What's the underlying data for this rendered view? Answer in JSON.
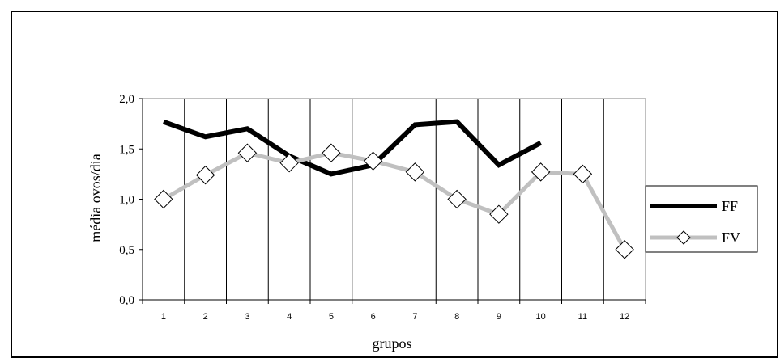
{
  "chart_data": {
    "type": "line",
    "title": "",
    "xlabel": "grupos",
    "ylabel": "média ovos/dia",
    "categories": [
      "1",
      "2",
      "3",
      "4",
      "5",
      "6",
      "7",
      "8",
      "9",
      "10",
      "11",
      "12"
    ],
    "ylim": [
      0,
      2.0
    ],
    "yticks": [
      "0,0",
      "0,5",
      "1,0",
      "1,5",
      "2,0"
    ],
    "ytick_values": [
      0,
      0.5,
      1.0,
      1.5,
      2.0
    ],
    "grid": "vertical",
    "legend_position": "right",
    "series": [
      {
        "name": "FF",
        "color": "#000000",
        "marker": "none",
        "values": [
          1.77,
          1.62,
          1.7,
          1.43,
          1.25,
          1.34,
          1.74,
          1.77,
          1.34,
          1.56,
          null,
          null
        ]
      },
      {
        "name": "FV",
        "color": "#c0c0c0",
        "marker": "diamond",
        "values": [
          1.0,
          1.24,
          1.46,
          1.36,
          1.46,
          1.38,
          1.27,
          1.0,
          0.85,
          1.27,
          1.25,
          0.5
        ]
      }
    ]
  }
}
